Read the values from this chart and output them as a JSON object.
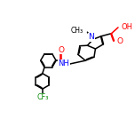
{
  "background_color": "#ffffff",
  "bond_color": "#000000",
  "atom_colors": {
    "O": "#ff0000",
    "N": "#0000ff",
    "F": "#008800",
    "C": "#000000",
    "H": "#000000"
  },
  "line_width": 1.1,
  "figsize": [
    1.52,
    1.52
  ],
  "dpi": 100,
  "xlim": [
    0,
    10
  ],
  "ylim": [
    0,
    10
  ]
}
